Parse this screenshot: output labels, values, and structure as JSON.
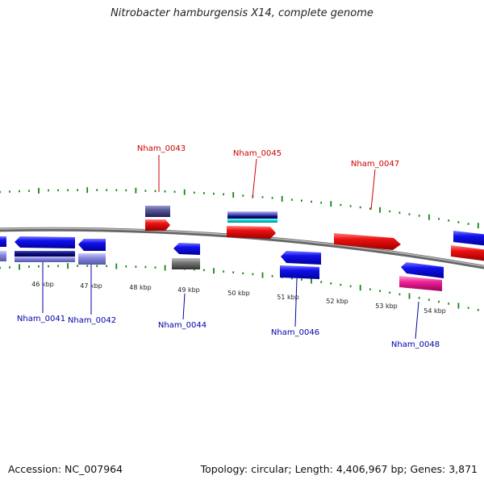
{
  "title": "Nitrobacter hamburgensis X14, complete genome",
  "footer": {
    "accession": "Accession: NC_007964",
    "stats": "Topology: circular; Length: 4,406,967 bp; Genes: 3,871"
  },
  "colors": {
    "forward_gene": "#ee1111",
    "reverse_gene": "#1111ee",
    "forward_label": "#cc0000",
    "reverse_label": "#0000aa",
    "tick": "#118811",
    "backbone": "#888888"
  },
  "scale": {
    "unit": "kbp",
    "tick_labels": [
      "46 kbp",
      "47 kbp",
      "48 kbp",
      "49 kbp",
      "50 kbp",
      "51 kbp",
      "52 kbp",
      "53 kbp",
      "54 kbp"
    ]
  },
  "genes": [
    {
      "name": "",
      "strand": "reverse"
    },
    {
      "name": "Nham_0041",
      "strand": "reverse"
    },
    {
      "name": "Nham_0042",
      "strand": "reverse"
    },
    {
      "name": "Nham_0043",
      "strand": "forward"
    },
    {
      "name": "Nham_0044",
      "strand": "reverse"
    },
    {
      "name": "Nham_0045",
      "strand": "forward"
    },
    {
      "name": "Nham_0046",
      "strand": "reverse"
    },
    {
      "name": "Nham_0047",
      "strand": "forward"
    },
    {
      "name": "Nham_0048",
      "strand": "reverse"
    },
    {
      "name": "",
      "strand": "reverse"
    },
    {
      "name": "",
      "strand": "forward"
    }
  ]
}
